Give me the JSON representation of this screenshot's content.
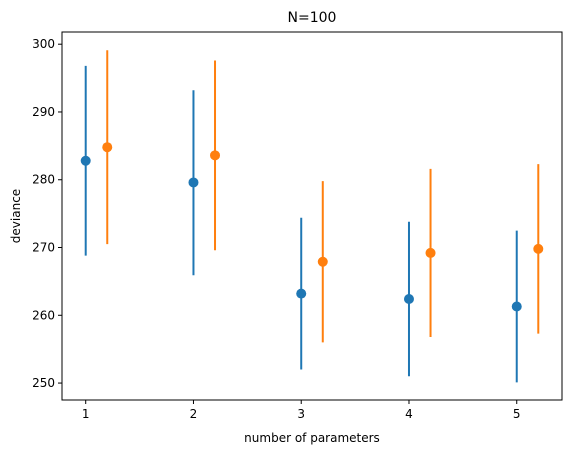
{
  "chart_data": {
    "type": "scatter",
    "title": "N=100",
    "xlabel": "number of parameters",
    "ylabel": "deviance",
    "xlim": [
      0.78,
      5.42
    ],
    "ylim": [
      247.5,
      301.8
    ],
    "xticks": [
      1,
      2,
      3,
      4,
      5
    ],
    "yticks": [
      250,
      260,
      270,
      280,
      290,
      300
    ],
    "grid": false,
    "legend": "none",
    "series": [
      {
        "color": "#1f77b4",
        "offset": 0,
        "points": [
          {
            "x": 1,
            "y": 282.8,
            "low": 268.8,
            "high": 296.8
          },
          {
            "x": 2,
            "y": 279.6,
            "low": 265.9,
            "high": 293.2
          },
          {
            "x": 3,
            "y": 263.2,
            "low": 252.0,
            "high": 274.4
          },
          {
            "x": 4,
            "y": 262.4,
            "low": 251.0,
            "high": 273.8
          },
          {
            "x": 5,
            "y": 261.3,
            "low": 250.1,
            "high": 272.5
          }
        ]
      },
      {
        "color": "#ff7f0e",
        "offset": 0.2,
        "points": [
          {
            "x": 1,
            "y": 284.8,
            "low": 270.5,
            "high": 299.1
          },
          {
            "x": 2,
            "y": 283.6,
            "low": 269.6,
            "high": 297.6
          },
          {
            "x": 3,
            "y": 267.9,
            "low": 256.0,
            "high": 279.8
          },
          {
            "x": 4,
            "y": 269.2,
            "low": 256.8,
            "high": 281.6
          },
          {
            "x": 5,
            "y": 269.8,
            "low": 257.3,
            "high": 282.3
          }
        ]
      }
    ]
  }
}
